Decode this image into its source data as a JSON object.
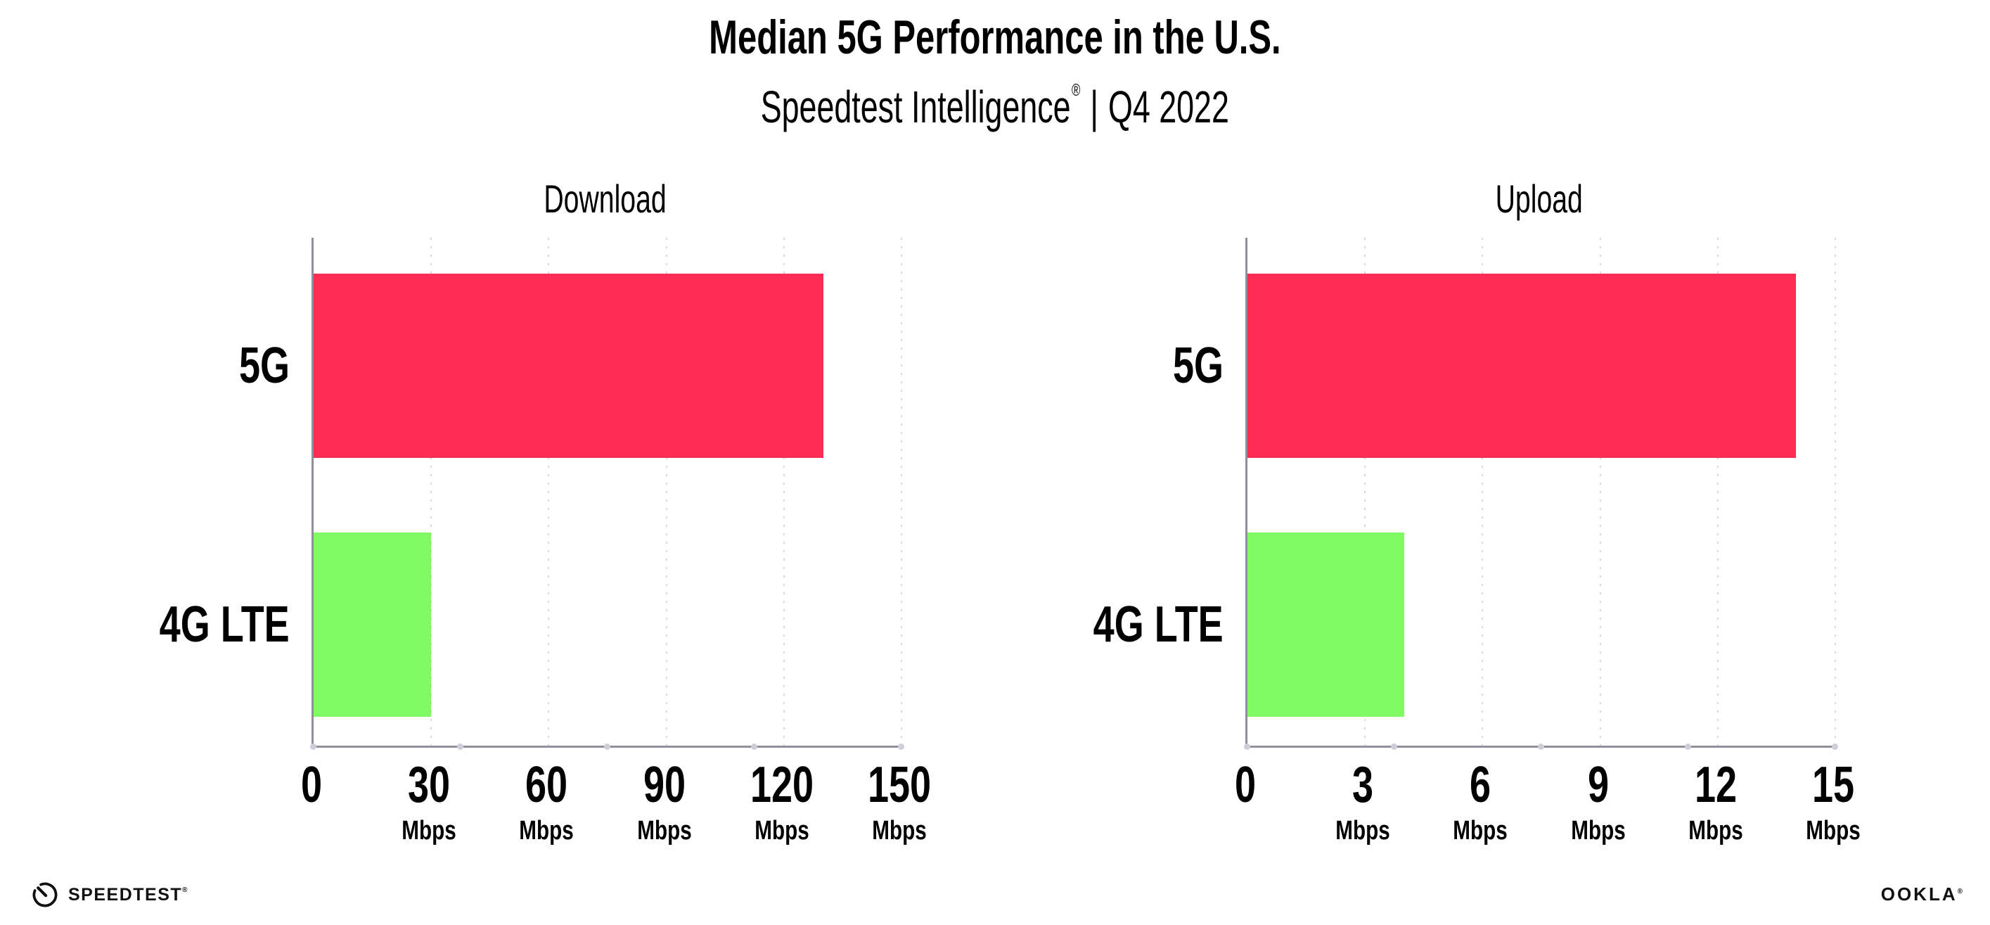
{
  "header": {
    "title": "Median 5G Performance in the U.S.",
    "subtitle": {
      "brand": "Speedtest Intelligence",
      "reg": "®",
      "separator": "|",
      "period": "Q4 2022"
    }
  },
  "chart_data": {
    "type": "bar",
    "orientation": "horizontal",
    "categories": [
      "5G",
      "4G LTE"
    ],
    "bar_colors": [
      "#ff2d55",
      "#80fb62"
    ],
    "unit": "Mbps",
    "grid": "dotted-vertical",
    "legend": "none",
    "axis_color": "#8f909b",
    "gridline_color": "#d8d9e4",
    "panels": [
      {
        "title": "Download",
        "xlim": [
          0,
          150
        ],
        "ticks": [
          0,
          30,
          60,
          90,
          120,
          150
        ],
        "values": [
          130,
          30
        ]
      },
      {
        "title": "Upload",
        "xlim": [
          0,
          15
        ],
        "ticks": [
          0,
          3,
          6,
          9,
          12,
          15
        ],
        "values": [
          14,
          4
        ]
      }
    ]
  },
  "footer": {
    "speedtest_label": "SPEEDTEST",
    "speedtest_reg": "®",
    "ookla_label": "OOKLA",
    "ookla_reg": "®"
  }
}
